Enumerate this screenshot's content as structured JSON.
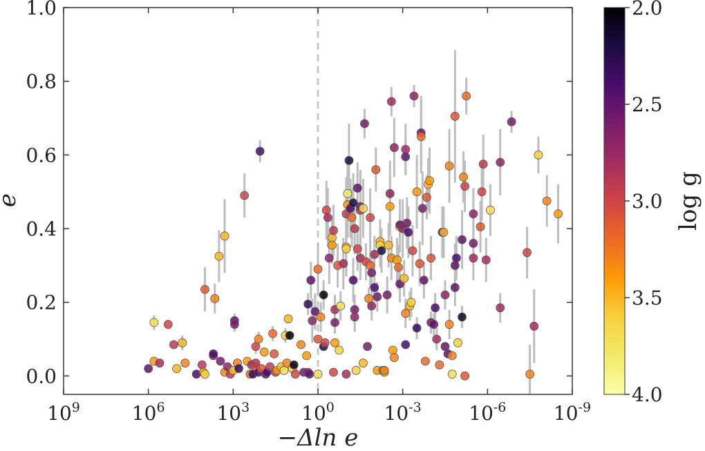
{
  "chart_data": {
    "type": "scatter",
    "xlabel": "−Δln e",
    "ylabel": "e",
    "x_scale": "log10, reversed",
    "xlim_log10": [
      9,
      -9
    ],
    "ylim": [
      -0.05,
      1.0
    ],
    "x_ticks": [
      {
        "exp": 9,
        "base": "10",
        "sup": "9"
      },
      {
        "exp": 6,
        "base": "10",
        "sup": "6"
      },
      {
        "exp": 3,
        "base": "10",
        "sup": "3"
      },
      {
        "exp": 0,
        "base": "10",
        "sup": "0"
      },
      {
        "exp": -3,
        "base": "10",
        "sup": "-3"
      },
      {
        "exp": -6,
        "base": "10",
        "sup": "-6"
      },
      {
        "exp": -9,
        "base": "10",
        "sup": "-9"
      }
    ],
    "y_ticks": [
      {
        "value": 0.0,
        "label": "0.0"
      },
      {
        "value": 0.2,
        "label": "0.2"
      },
      {
        "value": 0.4,
        "label": "0.4"
      },
      {
        "value": 0.6,
        "label": "0.6"
      },
      {
        "value": 0.8,
        "label": "0.8"
      },
      {
        "value": 1.0,
        "label": "1.0"
      }
    ],
    "reference_line": {
      "x_log10": 0,
      "style": "dashed",
      "color": "#c8c8c8"
    },
    "colorbar": {
      "label": "log g",
      "colormap": "inferno_r",
      "range": [
        2.0,
        4.0
      ],
      "ticks": [
        {
          "value": 2.0,
          "label": "2.0"
        },
        {
          "value": 2.5,
          "label": "2.5"
        },
        {
          "value": 3.0,
          "label": "3.0"
        },
        {
          "value": 3.5,
          "label": "3.5"
        },
        {
          "value": 4.0,
          "label": "4.0"
        }
      ]
    },
    "points": [
      [
        6.0,
        0.02,
        2.5,
        0
      ],
      [
        5.8,
        0.145,
        3.7,
        0.02
      ],
      [
        5.8,
        0.04,
        3.4,
        0
      ],
      [
        5.6,
        0.035,
        2.8,
        0
      ],
      [
        5.3,
        0.14,
        3.0,
        0
      ],
      [
        5.1,
        0.085,
        2.9,
        0
      ],
      [
        5.0,
        0.02,
        3.5,
        0
      ],
      [
        4.8,
        0.09,
        3.5,
        0.02
      ],
      [
        4.7,
        0.035,
        3.3,
        0
      ],
      [
        4.3,
        0.005,
        2.4,
        0
      ],
      [
        4.1,
        0.03,
        2.9,
        0
      ],
      [
        4.05,
        0.01,
        3.4,
        0
      ],
      [
        4.0,
        0.005,
        3.6,
        0
      ],
      [
        4.0,
        0.235,
        3.1,
        0.06
      ],
      [
        3.7,
        0.055,
        2.7,
        0
      ],
      [
        3.7,
        0.06,
        2.4,
        0
      ],
      [
        3.65,
        0.21,
        3.3,
        0.04
      ],
      [
        3.5,
        0.325,
        3.5,
        0.07
      ],
      [
        3.45,
        0.04,
        2.6,
        0
      ],
      [
        3.3,
        0.01,
        3.3,
        0
      ],
      [
        3.3,
        0.38,
        3.5,
        0.1
      ],
      [
        3.2,
        0.025,
        2.7,
        0
      ],
      [
        3.1,
        0.005,
        2.9,
        0
      ],
      [
        3.0,
        0.015,
        3.5,
        0
      ],
      [
        2.95,
        0.15,
        2.5,
        0.02
      ],
      [
        2.95,
        0.14,
        2.6,
        0.02
      ],
      [
        2.85,
        0.035,
        3.3,
        0
      ],
      [
        2.8,
        0.02,
        2.3,
        0
      ],
      [
        2.6,
        0.49,
        3.0,
        0.06
      ],
      [
        2.5,
        0.04,
        3.4,
        0
      ],
      [
        2.4,
        0.005,
        3.2,
        0
      ],
      [
        2.35,
        0.03,
        2.8,
        0
      ],
      [
        2.3,
        0.005,
        2.3,
        0
      ],
      [
        2.2,
        0.025,
        3.1,
        0
      ],
      [
        2.2,
        0.08,
        3.0,
        0.02
      ],
      [
        2.2,
        0.035,
        2.9,
        0
      ],
      [
        2.1,
        0.1,
        3.3,
        0.02
      ],
      [
        2.1,
        0.01,
        2.4,
        0
      ],
      [
        2.05,
        0.61,
        2.4,
        0.03
      ],
      [
        2.0,
        0.02,
        3.1,
        0
      ],
      [
        1.9,
        0.065,
        3.4,
        0
      ],
      [
        1.85,
        0.005,
        2.5,
        0
      ],
      [
        1.8,
        0.01,
        2.4,
        0
      ],
      [
        1.7,
        0.025,
        2.9,
        0
      ],
      [
        1.6,
        0.115,
        3.2,
        0.02
      ],
      [
        1.55,
        0.06,
        3.1,
        0
      ],
      [
        1.5,
        0.01,
        2.9,
        0
      ],
      [
        1.45,
        0.015,
        3.4,
        0
      ],
      [
        1.3,
        0.025,
        3.5,
        0
      ],
      [
        1.2,
        0.015,
        3.7,
        0
      ],
      [
        1.15,
        0.11,
        3.6,
        0.02
      ],
      [
        1.1,
        0.035,
        3.3,
        0
      ],
      [
        1.05,
        0.155,
        3.5,
        0
      ],
      [
        1.0,
        0.11,
        2.0,
        0
      ],
      [
        0.9,
        0.02,
        3.6,
        0
      ],
      [
        0.85,
        0.03,
        2.0,
        0
      ],
      [
        0.8,
        0.005,
        3.0,
        0
      ],
      [
        0.6,
        0.085,
        3.3,
        0
      ],
      [
        0.5,
        0.01,
        2.6,
        0
      ],
      [
        0.4,
        0.055,
        3.4,
        0
      ],
      [
        0.35,
        0.01,
        2.7,
        0
      ],
      [
        0.3,
        0.005,
        2.5,
        0
      ],
      [
        0.35,
        0.195,
        2.3,
        0.03
      ],
      [
        0.25,
        0.26,
        2.5,
        0.05
      ],
      [
        0.2,
        0.15,
        2.7,
        0.06
      ],
      [
        0.1,
        0.175,
        2.5,
        0.05
      ],
      [
        0.0,
        0.29,
        3.2,
        0.07
      ],
      [
        0.0,
        0.1,
        3.1,
        0
      ],
      [
        0.0,
        0.005,
        3.7,
        0
      ],
      [
        -0.1,
        0.16,
        3.3,
        0.04
      ],
      [
        -0.2,
        0.22,
        2.0,
        0.04
      ],
      [
        -0.2,
        0.08,
        2.2,
        0
      ],
      [
        -0.25,
        0.09,
        3.0,
        0
      ],
      [
        -0.3,
        0.45,
        3.0,
        0.08
      ],
      [
        -0.35,
        0.43,
        2.8,
        0.08
      ],
      [
        -0.4,
        0.32,
        2.7,
        0.07
      ],
      [
        -0.5,
        0.375,
        3.5,
        0.06
      ],
      [
        -0.5,
        0.355,
        3.4,
        0.05
      ],
      [
        -0.55,
        0.395,
        2.9,
        0.07
      ],
      [
        -0.55,
        0.01,
        3.0,
        0
      ],
      [
        -0.6,
        0.09,
        3.4,
        0
      ],
      [
        -0.6,
        0.18,
        2.8,
        0.04
      ],
      [
        -0.6,
        0.145,
        2.6,
        0.03
      ],
      [
        -0.7,
        0.3,
        3.1,
        0.06
      ],
      [
        -0.75,
        0.07,
        3.6,
        0
      ],
      [
        -0.8,
        0.19,
        3.7,
        0.04
      ],
      [
        -0.9,
        0.305,
        2.8,
        0.07
      ],
      [
        -1.0,
        0.44,
        2.9,
        0.1
      ],
      [
        -1.0,
        0.35,
        3.5,
        0.08
      ],
      [
        -1.0,
        0.345,
        3.6,
        0.07
      ],
      [
        -1.0,
        0.005,
        2.8,
        0
      ],
      [
        -1.05,
        0.465,
        3.4,
        0.09
      ],
      [
        -1.05,
        0.495,
        3.8,
        0.09
      ],
      [
        -1.1,
        0.585,
        2.2,
        0.1
      ],
      [
        -1.15,
        0.455,
        2.4,
        0.08
      ],
      [
        -1.2,
        0.43,
        3.2,
        0.08
      ],
      [
        -1.25,
        0.47,
        2.2,
        0.08
      ],
      [
        -1.25,
        0.26,
        2.4,
        0.06
      ],
      [
        -1.3,
        0.4,
        2.9,
        0.07
      ],
      [
        -1.3,
        0.18,
        2.6,
        0.04
      ],
      [
        -1.3,
        0.16,
        2.7,
        0.04
      ],
      [
        -1.35,
        0.015,
        3.6,
        0
      ],
      [
        -1.4,
        0.51,
        2.5,
        0.07
      ],
      [
        -1.4,
        0.345,
        3.0,
        0.06
      ],
      [
        -1.5,
        0.32,
        2.8,
        0.06
      ],
      [
        -1.5,
        0.45,
        2.9,
        0.1
      ],
      [
        -1.5,
        0.46,
        2.6,
        0.1
      ],
      [
        -1.6,
        0.035,
        3.5,
        0
      ],
      [
        -1.6,
        0.455,
        3.7,
        0.08
      ],
      [
        -1.65,
        0.685,
        2.6,
        0.04
      ],
      [
        -1.7,
        0.31,
        3.0,
        0.05
      ],
      [
        -1.75,
        0.08,
        2.6,
        0
      ],
      [
        -1.85,
        0.43,
        3.0,
        0.08
      ],
      [
        -1.8,
        0.21,
        3.3,
        0.03
      ],
      [
        -1.85,
        0.3,
        3.2,
        0.06
      ],
      [
        -1.9,
        0.28,
        2.6,
        0.05
      ],
      [
        -1.9,
        0.19,
        2.7,
        0.04
      ],
      [
        -2.0,
        0.33,
        2.8,
        0.05
      ],
      [
        -2.0,
        0.24,
        2.4,
        0.04
      ],
      [
        -2.05,
        0.56,
        3.1,
        0.06
      ],
      [
        -2.1,
        0.215,
        2.6,
        0.04
      ],
      [
        -2.1,
        0.015,
        3.4,
        0
      ],
      [
        -2.2,
        0.365,
        3.5,
        0.06
      ],
      [
        -2.2,
        0.355,
        3.6,
        0.06
      ],
      [
        -2.25,
        0.34,
        2.2,
        0.06
      ],
      [
        -2.3,
        0.015,
        3.1,
        0
      ],
      [
        -2.35,
        0.01,
        3.4,
        0
      ],
      [
        -2.35,
        0.015,
        3.3,
        0
      ],
      [
        -2.45,
        0.22,
        2.6,
        0.05
      ],
      [
        -2.5,
        0.355,
        3.5,
        0.06
      ],
      [
        -2.55,
        0.46,
        3.4,
        0.08
      ],
      [
        -2.55,
        0.495,
        2.7,
        0.09
      ],
      [
        -2.6,
        0.745,
        2.8,
        0.04
      ],
      [
        -2.6,
        0.32,
        3.3,
        0.06
      ],
      [
        -2.65,
        0.07,
        3.4,
        0
      ],
      [
        -2.7,
        0.62,
        2.7,
        0.08
      ],
      [
        -2.7,
        0.05,
        3.3,
        0
      ],
      [
        -2.8,
        0.315,
        3.4,
        0.06
      ],
      [
        -2.85,
        0.295,
        3.2,
        0.06
      ],
      [
        -2.9,
        0.405,
        3.8,
        0.07
      ],
      [
        -2.9,
        0.41,
        2.5,
        0.07
      ],
      [
        -2.9,
        0.25,
        2.5,
        0.05
      ],
      [
        -3.0,
        0.4,
        2.7,
        0.08
      ],
      [
        -3.05,
        0.265,
        3.5,
        0.05
      ],
      [
        -3.1,
        0.615,
        2.8,
        0.07
      ],
      [
        -3.1,
        0.595,
        2.5,
        0.05
      ],
      [
        -3.1,
        0.17,
        3.3,
        0.04
      ],
      [
        -3.1,
        0.085,
        2.4,
        0
      ],
      [
        -3.15,
        0.415,
        2.6,
        0.07
      ],
      [
        -3.2,
        0.39,
        2.4,
        0.07
      ],
      [
        -3.25,
        0.19,
        3.5,
        0.04
      ],
      [
        -3.3,
        0.2,
        3.6,
        0.04
      ],
      [
        -3.35,
        0.34,
        3.0,
        0.07
      ],
      [
        -3.4,
        0.76,
        2.7,
        0.03
      ],
      [
        -3.5,
        0.5,
        3.4,
        0.1
      ],
      [
        -3.5,
        0.13,
        2.3,
        0.03
      ],
      [
        -3.6,
        0.305,
        3.1,
        0.06
      ],
      [
        -3.65,
        0.66,
        2.5,
        0.1
      ],
      [
        -3.65,
        0.65,
        3.2,
        0.1
      ],
      [
        -3.7,
        0.455,
        2.6,
        0.1
      ],
      [
        -3.75,
        0.26,
        2.5,
        0.05
      ],
      [
        -3.8,
        0.04,
        3.2,
        0
      ],
      [
        -3.85,
        0.485,
        3.1,
        0.06
      ],
      [
        -3.9,
        0.52,
        3.5,
        0.07
      ],
      [
        -3.95,
        0.53,
        3.4,
        0.09
      ],
      [
        -4.0,
        0.32,
        3.1,
        0.06
      ],
      [
        -4.0,
        0.145,
        2.6,
        0.03
      ],
      [
        -4.1,
        0.14,
        2.5,
        0.03
      ],
      [
        -4.15,
        0.185,
        2.4,
        0.04
      ],
      [
        -4.2,
        0.1,
        2.8,
        0.03
      ],
      [
        -4.3,
        0.03,
        3.2,
        0
      ],
      [
        -4.4,
        0.39,
        2.5,
        0.07
      ],
      [
        -4.45,
        0.39,
        3.5,
        0.07
      ],
      [
        -4.5,
        0.22,
        2.7,
        0.04
      ],
      [
        -4.5,
        0.08,
        2.5,
        0
      ],
      [
        -4.6,
        0.06,
        2.5,
        0
      ],
      [
        -4.65,
        0.57,
        3.3,
        0.1
      ],
      [
        -4.65,
        0.14,
        3.3,
        0.04
      ],
      [
        -4.75,
        0.055,
        3.3,
        0
      ],
      [
        -4.75,
        0.005,
        3.7,
        0
      ],
      [
        -4.85,
        0.705,
        3.1,
        0.18
      ],
      [
        -4.85,
        0.3,
        2.5,
        0.06
      ],
      [
        -4.85,
        0.24,
        2.5,
        0.05
      ],
      [
        -4.9,
        0.32,
        2.4,
        0.06
      ],
      [
        -4.95,
        0.09,
        3.6,
        0
      ],
      [
        -5.1,
        0.37,
        2.5,
        0.08
      ],
      [
        -5.1,
        0.16,
        2.1,
        0.03
      ],
      [
        -5.15,
        0.54,
        3.3,
        0.07
      ],
      [
        -5.2,
        0.515,
        3.0,
        0.07
      ],
      [
        -5.25,
        0.76,
        3.2,
        0.05
      ],
      [
        -5.2,
        0.0,
        3.1,
        0
      ],
      [
        -5.5,
        0.36,
        2.6,
        0.07
      ],
      [
        -5.5,
        0.32,
        2.8,
        0.06
      ],
      [
        -5.5,
        0.44,
        2.7,
        0.07
      ],
      [
        -5.75,
        0.405,
        3.1,
        0.07
      ],
      [
        -5.8,
        0.5,
        3.0,
        0.08
      ],
      [
        -5.85,
        0.575,
        2.9,
        0.08
      ],
      [
        -5.95,
        0.315,
        2.8,
        0.06
      ],
      [
        -6.1,
        0.45,
        3.7,
        0.07
      ],
      [
        -6.45,
        0.58,
        2.7,
        0.09
      ],
      [
        -6.45,
        0.185,
        2.8,
        0.04
      ],
      [
        -6.85,
        0.69,
        2.6,
        0.03
      ],
      [
        -7.4,
        0.335,
        3.0,
        0.07
      ],
      [
        -7.5,
        0.005,
        3.3,
        0.08
      ],
      [
        -7.65,
        0.135,
        2.8,
        0.1
      ],
      [
        -7.8,
        0.6,
        3.6,
        0.05
      ],
      [
        -8.1,
        0.475,
        3.3,
        0.07
      ],
      [
        -8.5,
        0.44,
        3.4,
        0.08
      ]
    ]
  }
}
